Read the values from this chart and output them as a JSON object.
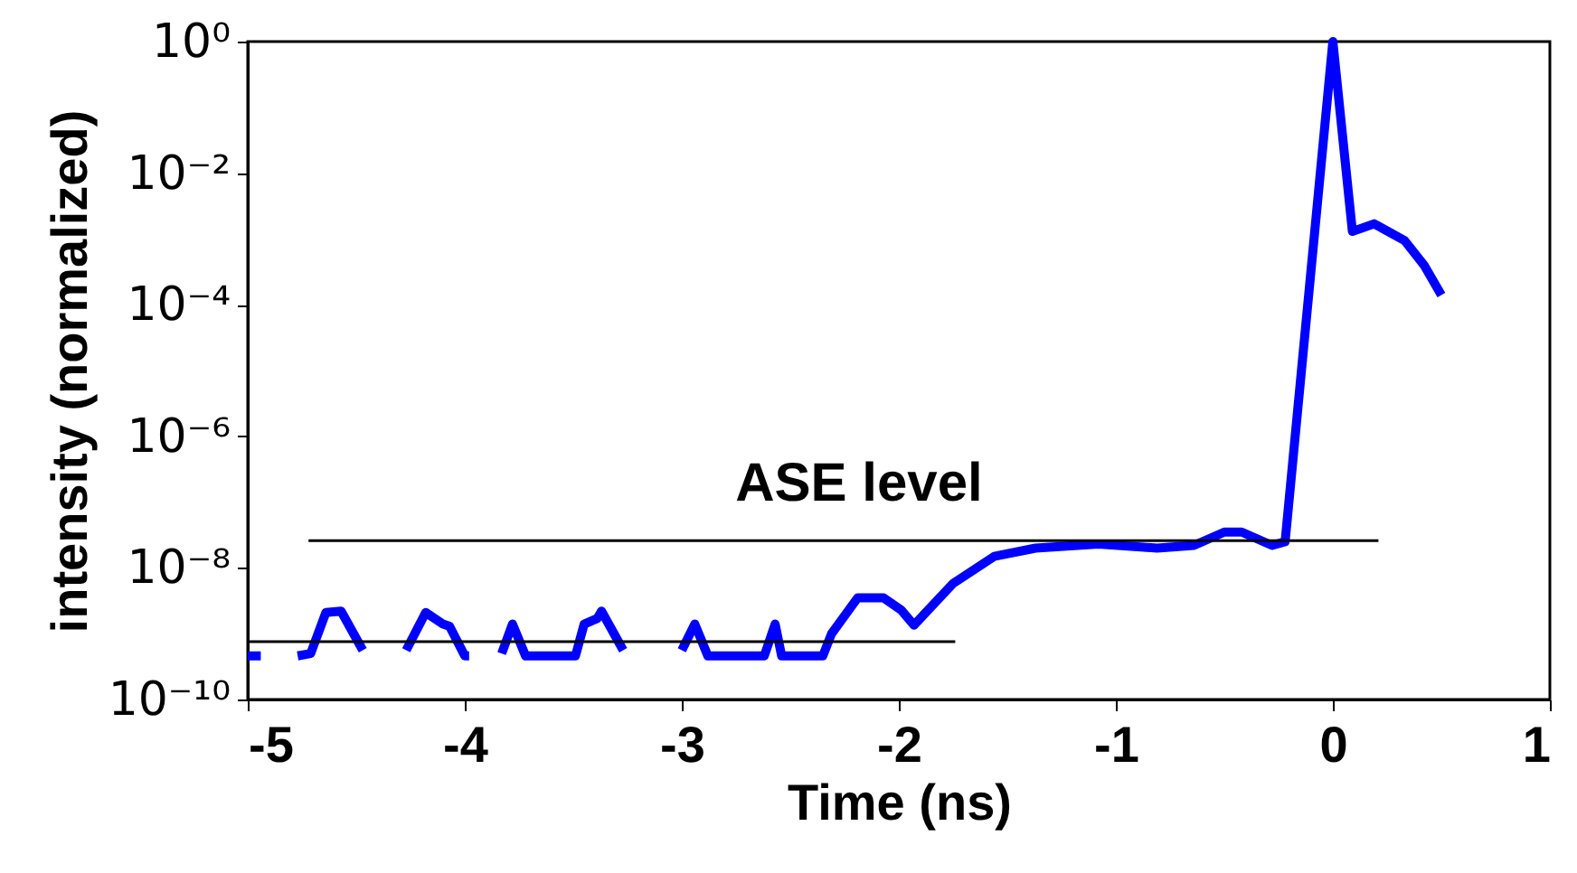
{
  "chart_data": {
    "type": "line",
    "xlabel": "Time (ns)",
    "ylabel": "intensity (normalized)",
    "log": "y",
    "grid": false,
    "xlim": [
      -5,
      1
    ],
    "xticks": [
      -5,
      -4,
      -3,
      -2,
      -1,
      0,
      1
    ],
    "ylim": [
      1e-10,
      1
    ],
    "yticks": [
      {
        "value": 1e-10,
        "label": "10⁻¹⁰"
      },
      {
        "value": 1e-08,
        "label": "10⁻⁸"
      },
      {
        "value": 1e-06,
        "label": "10⁻⁶"
      },
      {
        "value": 0.0001,
        "label": "10⁻⁴"
      },
      {
        "value": 0.01,
        "label": "10⁻²"
      },
      {
        "value": 1,
        "label": "10⁰"
      }
    ],
    "annotations": [
      "ASE level"
    ],
    "series": [
      {
        "color": "#0000ff",
        "x": [
          -5.0,
          -4.94,
          -4.9,
          -4.77,
          -4.71,
          -4.64,
          -4.57,
          -4.47,
          -4.4,
          -4.27,
          -4.18,
          -4.1,
          -4.07,
          -4.0,
          -3.98,
          -3.9,
          -3.83,
          -3.78,
          -3.72,
          -3.49,
          -3.45,
          -3.39,
          -3.37,
          -3.27,
          -3.1,
          -3.0,
          -2.94,
          -2.88,
          -2.62,
          -2.57,
          -2.54,
          -2.35,
          -2.31,
          -2.19,
          -2.07,
          -1.99,
          -1.93,
          -1.75,
          -1.56,
          -1.37,
          -1.08,
          -0.81,
          -0.64,
          -0.5,
          -0.42,
          -0.28,
          -0.22,
          0.0,
          0.09,
          0.19,
          0.33,
          0.42,
          0.5
        ],
        "values": [
          4.6e-10,
          4.6e-10,
          null,
          4.6e-10,
          5e-10,
          2.1e-09,
          2.2e-09,
          5.6e-10,
          null,
          5.6e-10,
          2.1e-09,
          1.4e-09,
          1.3e-09,
          4.6e-10,
          4.6e-10,
          null,
          5e-10,
          1.4e-09,
          4.6e-10,
          4.6e-10,
          1.4e-09,
          1.7e-09,
          2.2e-09,
          5.6e-10,
          null,
          5.6e-10,
          1.4e-09,
          4.6e-10,
          4.6e-10,
          1.4e-09,
          4.6e-10,
          4.6e-10,
          1e-09,
          3.5e-09,
          3.5e-09,
          2.3e-09,
          1.35e-09,
          5.8e-09,
          1.5e-08,
          2e-08,
          2.3e-08,
          2e-08,
          2.2e-08,
          3.5e-08,
          3.5e-08,
          2.2e-08,
          2.5e-08,
          1,
          0.0013,
          0.0017,
          0.00095,
          0.0004,
          0.00014
        ]
      },
      {
        "color": "#000000",
        "x": [
          -5.0,
          -1.74
        ],
        "values": [
          7.6e-10,
          7.6e-10
        ]
      },
      {
        "color": "#000000",
        "x": [
          -4.72,
          0.21
        ],
        "values": [
          2.6e-08,
          2.6e-08
        ]
      }
    ]
  }
}
